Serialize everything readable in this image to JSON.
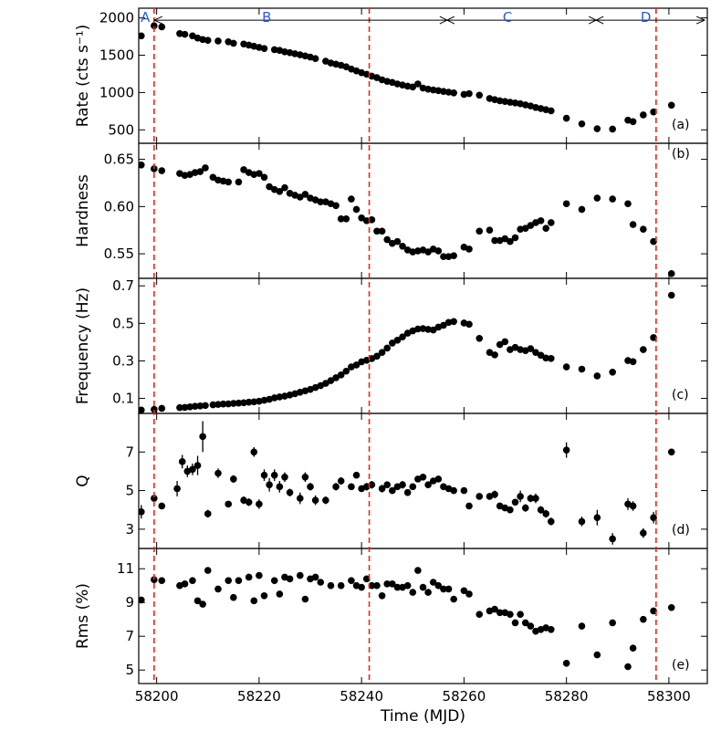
{
  "chart_data": {
    "type": "scatter",
    "xlabel": "Time (MJD)",
    "xlim": [
      58196.5,
      58307.5
    ],
    "xticks": [
      58200,
      58220,
      58240,
      58260,
      58280,
      58300
    ],
    "xtick_labels": [
      "58200",
      "58220",
      "58240",
      "58260",
      "58280",
      "58300"
    ],
    "vlines": [
      58199.5,
      58241.5,
      58297.5
    ],
    "vline_color": "#e8291c",
    "regions": {
      "labels": [
        {
          "text": "A",
          "x": 58197.8
        },
        {
          "text": "B",
          "x": 58221.5
        },
        {
          "text": "C",
          "x": 58268.5
        },
        {
          "text": "D",
          "x": 58295.5
        }
      ],
      "arrow_y_panel": "a",
      "arrow_y": 1970,
      "arrow_start": 58199.5,
      "arrow_end": 58307,
      "bounds": [
        58199.5,
        58256.7,
        58285.8
      ]
    },
    "panels": [
      {
        "id": "a",
        "tag": "(a)",
        "ylabel": "Rate (cts s⁻¹)",
        "ylim": [
          320,
          2130
        ],
        "yticks": [
          500,
          1000,
          1500,
          2000
        ],
        "ytick_labels": [
          "500",
          "1000",
          "1500",
          "2000"
        ],
        "x": [
          58197,
          58199.5,
          58201,
          58204.5,
          58205.5,
          58207,
          58208,
          58209,
          58210,
          58212,
          58214,
          58215,
          58217,
          58218,
          58219,
          58220,
          58221,
          58223,
          58224,
          58225,
          58226,
          58227,
          58228,
          58229,
          58230,
          58231,
          58233,
          58234,
          58235,
          58236,
          58237,
          58238,
          58239,
          58240,
          58241,
          58242,
          58243,
          58244,
          58245,
          58246,
          58247,
          58248,
          58249,
          58250,
          58251,
          58252,
          58253,
          58254,
          58255,
          58256,
          58257,
          58258,
          58260,
          58261,
          58263,
          58265,
          58266,
          58267,
          58268,
          58269,
          58270,
          58271,
          58272,
          58273,
          58274,
          58275,
          58276,
          58277,
          58280,
          58283,
          58286,
          58289,
          58292,
          58293,
          58295,
          58297,
          58300.5
        ],
        "y": [
          1760,
          1895,
          1880,
          1790,
          1780,
          1760,
          1730,
          1710,
          1700,
          1690,
          1680,
          1660,
          1650,
          1635,
          1620,
          1605,
          1590,
          1575,
          1565,
          1545,
          1535,
          1520,
          1505,
          1490,
          1475,
          1455,
          1420,
          1395,
          1380,
          1365,
          1345,
          1315,
          1290,
          1265,
          1245,
          1220,
          1200,
          1170,
          1150,
          1135,
          1115,
          1100,
          1085,
          1075,
          1115,
          1060,
          1045,
          1035,
          1025,
          1015,
          1005,
          995,
          975,
          985,
          965,
          920,
          905,
          890,
          880,
          870,
          860,
          850,
          835,
          820,
          800,
          785,
          770,
          755,
          655,
          580,
          515,
          510,
          630,
          610,
          700,
          740,
          830
        ],
        "yerr": []
      },
      {
        "id": "b",
        "tag": "(b)",
        "ylabel": "Hardness",
        "ylim": [
          0.524,
          0.667
        ],
        "yticks": [
          0.55,
          0.6,
          0.65
        ],
        "ytick_labels": [
          "0.55",
          "0.60",
          "0.65"
        ],
        "x": [
          58197,
          58199.5,
          58201,
          58204.5,
          58205.5,
          58206.5,
          58207.5,
          58208.5,
          58209.5,
          58211,
          58212,
          58213,
          58214,
          58216,
          58217,
          58218,
          58219,
          58220,
          58221,
          58222,
          58223,
          58224,
          58225,
          58226,
          58227,
          58228,
          58229,
          58230,
          58231,
          58232,
          58233,
          58234,
          58235,
          58236,
          58237,
          58238,
          58239,
          58240,
          58241,
          58242,
          58243,
          58244,
          58245,
          58246,
          58247,
          58248,
          58249,
          58250,
          58251,
          58252,
          58253,
          58254,
          58255,
          58256,
          58257,
          58258,
          58260,
          58261,
          58263,
          58265,
          58266,
          58267,
          58268,
          58269,
          58270,
          58271,
          58272,
          58273,
          58274,
          58275,
          58276,
          58277,
          58280,
          58283,
          58286,
          58289,
          58292,
          58293,
          58295,
          58297,
          58300.5
        ],
        "y": [
          0.644,
          0.64,
          0.638,
          0.635,
          0.633,
          0.634,
          0.636,
          0.637,
          0.641,
          0.631,
          0.628,
          0.627,
          0.626,
          0.626,
          0.639,
          0.636,
          0.634,
          0.635,
          0.631,
          0.621,
          0.618,
          0.616,
          0.62,
          0.614,
          0.612,
          0.61,
          0.613,
          0.609,
          0.607,
          0.605,
          0.605,
          0.603,
          0.601,
          0.587,
          0.587,
          0.608,
          0.597,
          0.588,
          0.585,
          0.586,
          0.574,
          0.574,
          0.565,
          0.561,
          0.563,
          0.558,
          0.554,
          0.552,
          0.553,
          0.554,
          0.552,
          0.555,
          0.553,
          0.547,
          0.547,
          0.548,
          0.557,
          0.555,
          0.574,
          0.575,
          0.564,
          0.564,
          0.566,
          0.563,
          0.567,
          0.576,
          0.577,
          0.58,
          0.583,
          0.585,
          0.577,
          0.583,
          0.603,
          0.597,
          0.609,
          0.608,
          0.603,
          0.581,
          0.576,
          0.563,
          0.529
        ],
        "yerr": []
      },
      {
        "id": "c",
        "tag": "(c)",
        "ylabel": "Frequency (Hz)",
        "ylim": [
          0.02,
          0.74
        ],
        "yticks": [
          0.1,
          0.3,
          0.5,
          0.7
        ],
        "ytick_labels": [
          "0.1",
          "0.3",
          "0.5",
          "0.7"
        ],
        "x": [
          58197,
          58199.5,
          58201,
          58204.5,
          58205.5,
          58206.5,
          58207.5,
          58208.5,
          58209.5,
          58211,
          58212,
          58213,
          58214,
          58215,
          58216,
          58217,
          58218,
          58219,
          58220,
          58221,
          58222,
          58223,
          58224,
          58225,
          58226,
          58227,
          58228,
          58229,
          58230,
          58231,
          58232,
          58233,
          58234,
          58235,
          58236,
          58237,
          58238,
          58239,
          58240,
          58241,
          58242,
          58243,
          58244,
          58245,
          58246,
          58247,
          58248,
          58249,
          58250,
          58251,
          58252,
          58253,
          58254,
          58255,
          58256,
          58257,
          58258,
          58260,
          58261,
          58263,
          58265,
          58266,
          58267,
          58268,
          58269,
          58270,
          58271,
          58272,
          58273,
          58274,
          58275,
          58276,
          58277,
          58280,
          58283,
          58286,
          58289,
          58292,
          58293,
          58295,
          58297,
          58300.5
        ],
        "y": [
          0.038,
          0.041,
          0.047,
          0.051,
          0.052,
          0.055,
          0.058,
          0.06,
          0.062,
          0.066,
          0.068,
          0.07,
          0.071,
          0.073,
          0.075,
          0.077,
          0.08,
          0.082,
          0.085,
          0.09,
          0.095,
          0.103,
          0.108,
          0.112,
          0.118,
          0.125,
          0.133,
          0.14,
          0.148,
          0.158,
          0.168,
          0.18,
          0.195,
          0.21,
          0.225,
          0.245,
          0.268,
          0.278,
          0.295,
          0.303,
          0.312,
          0.325,
          0.345,
          0.368,
          0.395,
          0.41,
          0.428,
          0.448,
          0.46,
          0.47,
          0.472,
          0.468,
          0.465,
          0.48,
          0.49,
          0.505,
          0.51,
          0.502,
          0.495,
          0.42,
          0.345,
          0.332,
          0.387,
          0.402,
          0.36,
          0.372,
          0.36,
          0.355,
          0.365,
          0.345,
          0.33,
          0.315,
          0.313,
          0.268,
          0.256,
          0.22,
          0.24,
          0.302,
          0.296,
          0.36,
          0.424,
          0.65
        ],
        "yerr": []
      },
      {
        "id": "d",
        "tag": "(d)",
        "ylabel": "Q",
        "ylim": [
          2.0,
          9.0
        ],
        "yticks": [
          3,
          5,
          7
        ],
        "ytick_labels": [
          "3",
          "5",
          "7"
        ],
        "x": [
          58197,
          58199.5,
          58201,
          58204,
          58205,
          58206,
          58207,
          58208,
          58209,
          58210,
          58212,
          58214,
          58215,
          58217,
          58218,
          58219,
          58220,
          58221,
          58222,
          58223,
          58224,
          58225,
          58226,
          58228,
          58229,
          58230,
          58231,
          58233,
          58235,
          58236,
          58238,
          58239,
          58240,
          58241,
          58242,
          58244,
          58245,
          58246,
          58247,
          58248,
          58249,
          58250,
          58251,
          58252,
          58253,
          58254,
          58255,
          58256,
          58257,
          58258,
          58260,
          58261,
          58263,
          58265,
          58266,
          58267,
          58268,
          58269,
          58270,
          58271,
          58272,
          58273,
          58274,
          58275,
          58276,
          58277,
          58280,
          58283,
          58286,
          58289,
          58292,
          58293,
          58295,
          58297,
          58300.5
        ],
        "y": [
          3.9,
          4.6,
          4.2,
          5.1,
          6.5,
          6.0,
          6.1,
          6.3,
          7.8,
          3.8,
          5.9,
          4.3,
          5.6,
          4.5,
          4.4,
          7.0,
          4.3,
          5.8,
          5.3,
          5.8,
          5.2,
          5.7,
          4.9,
          4.6,
          5.7,
          5.2,
          4.5,
          4.5,
          5.2,
          5.5,
          5.2,
          5.8,
          5.1,
          5.2,
          5.3,
          5.1,
          5.3,
          5.0,
          5.2,
          5.3,
          4.9,
          5.2,
          5.6,
          5.7,
          5.3,
          5.5,
          5.6,
          5.2,
          5.1,
          5.0,
          5.0,
          4.2,
          4.7,
          4.7,
          4.8,
          4.2,
          4.1,
          4.0,
          4.4,
          4.7,
          4.1,
          4.6,
          4.6,
          4.0,
          3.8,
          3.4,
          7.1,
          3.4,
          3.6,
          2.5,
          4.3,
          4.2,
          2.8,
          3.6,
          7.0
        ],
        "yerr": [
          0.35,
          0.2,
          0.1,
          0.4,
          0.35,
          0.3,
          0.3,
          0.5,
          0.8,
          0.2,
          0.25,
          0.15,
          0.2,
          0.2,
          0.2,
          0.25,
          0.25,
          0.3,
          0.35,
          0.3,
          0.3,
          0.25,
          0.2,
          0.3,
          0.25,
          0.2,
          0.25,
          0.2,
          0.2,
          0.2,
          0.15,
          0.15,
          0.15,
          0.2,
          0.2,
          0.2,
          0.15,
          0.15,
          0.15,
          0.2,
          0.15,
          0.15,
          0.15,
          0.15,
          0.15,
          0.15,
          0.15,
          0.15,
          0.15,
          0.15,
          0.15,
          0.15,
          0.15,
          0.15,
          0.2,
          0.15,
          0.15,
          0.15,
          0.15,
          0.3,
          0.2,
          0.2,
          0.25,
          0.2,
          0.2,
          0.2,
          0.4,
          0.25,
          0.4,
          0.3,
          0.3,
          0.25,
          0.25,
          0.3,
          0.15
        ]
      },
      {
        "id": "e",
        "tag": "(e)",
        "ylabel": "Rms (%)",
        "ylim": [
          4.2,
          12.2
        ],
        "yticks": [
          5,
          7,
          9,
          11
        ],
        "ytick_labels": [
          "5",
          "7",
          "9",
          "11"
        ],
        "x": [
          58197,
          58199.5,
          58201,
          58204.5,
          58205.5,
          58207,
          58208,
          58209,
          58210,
          58212,
          58214,
          58215,
          58216,
          58218,
          58219,
          58220,
          58221,
          58223,
          58224,
          58225,
          58226,
          58228,
          58229,
          58230,
          58231,
          58232,
          58234,
          58236,
          58238,
          58239,
          58240,
          58241,
          58242,
          58243,
          58244,
          58245,
          58246,
          58247,
          58248,
          58249,
          58250,
          58251,
          58252,
          58253,
          58254,
          58255,
          58256,
          58257,
          58258,
          58260,
          58261,
          58263,
          58265,
          58266,
          58267,
          58268,
          58269,
          58270,
          58271,
          58272,
          58273,
          58274,
          58275,
          58276,
          58277,
          58280,
          58283,
          58286,
          58289,
          58292,
          58293,
          58295,
          58297,
          58300.5
        ],
        "y": [
          9.15,
          10.35,
          10.3,
          10.0,
          10.1,
          10.3,
          9.1,
          8.9,
          10.9,
          9.8,
          10.3,
          9.3,
          10.3,
          10.5,
          9.1,
          10.6,
          9.4,
          10.3,
          9.5,
          10.5,
          10.4,
          10.6,
          9.2,
          10.4,
          10.5,
          10.2,
          10.0,
          10.0,
          10.3,
          10.0,
          9.9,
          10.4,
          10.0,
          10.0,
          9.4,
          10.1,
          10.1,
          9.9,
          9.9,
          10.0,
          9.6,
          10.9,
          9.9,
          9.6,
          10.2,
          10.0,
          9.8,
          9.8,
          9.2,
          9.7,
          9.5,
          8.3,
          8.5,
          8.6,
          8.4,
          8.4,
          8.3,
          7.8,
          8.3,
          7.8,
          7.6,
          7.3,
          7.4,
          7.5,
          7.4,
          5.4,
          7.6,
          5.9,
          7.8,
          5.2,
          6.3,
          8.0,
          8.5,
          8.7
        ],
        "yerr": [
          0.15,
          0.15,
          0.1,
          0.15,
          0.15,
          0.15,
          0.15,
          0.15,
          0.15,
          0.15,
          0.15,
          0.15,
          0.15,
          0.15,
          0.15,
          0.15,
          0.15,
          0.15,
          0.15,
          0.15,
          0.15,
          0.15,
          0.15,
          0.15,
          0.15,
          0.15,
          0.15,
          0.15,
          0.15,
          0.15,
          0.15,
          0.15,
          0.15,
          0.15,
          0.15,
          0.15,
          0.15,
          0.15,
          0.15,
          0.15,
          0.15,
          0.15,
          0.15,
          0.15,
          0.15,
          0.15,
          0.15,
          0.15,
          0.15,
          0.15,
          0.15,
          0.15,
          0.15,
          0.15,
          0.15,
          0.15,
          0.15,
          0.15,
          0.15,
          0.15,
          0.15,
          0.15,
          0.15,
          0.15,
          0.15,
          0.15,
          0.15,
          0.15,
          0.15,
          0.15,
          0.15,
          0.15,
          0.15,
          0.15
        ]
      }
    ]
  }
}
